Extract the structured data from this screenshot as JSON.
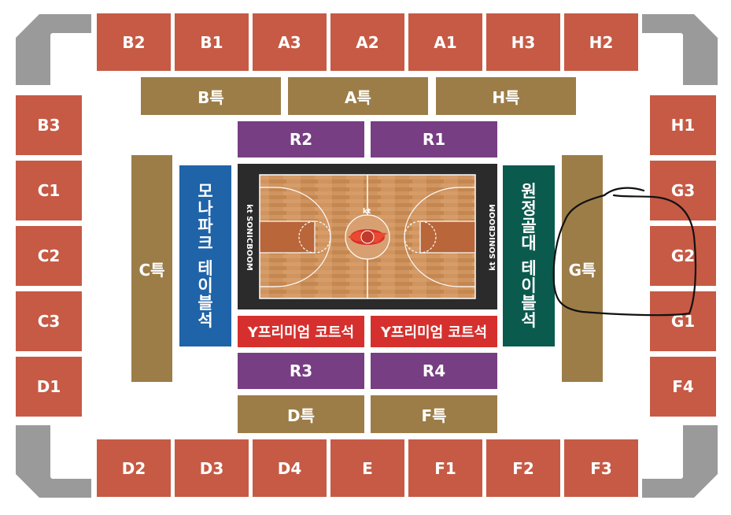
{
  "sections": {
    "top": [
      "B2",
      "B1",
      "A3",
      "A2",
      "A1",
      "H3",
      "H2"
    ],
    "top_special": [
      "B특",
      "A특",
      "H특"
    ],
    "left": [
      "B3",
      "C1",
      "C2",
      "C3",
      "D1"
    ],
    "right": [
      "H1",
      "G3",
      "G2",
      "G1",
      "F4"
    ],
    "bottom": [
      "D2",
      "D3",
      "D4",
      "E",
      "F1",
      "F2",
      "F3"
    ],
    "bottom_special": [
      "D특",
      "F특"
    ],
    "c_special": "C특",
    "g_special": "G특",
    "r_top": [
      "R2",
      "R1"
    ],
    "r_bottom": [
      "R3",
      "R4"
    ],
    "premium": [
      "Y프리미엄 코트석",
      "Y프리미엄 코트석"
    ],
    "left_table": [
      "모",
      "나",
      "파",
      "크",
      "",
      "테",
      "이",
      "블",
      "석"
    ],
    "right_table": [
      "원",
      "정",
      "골",
      "대",
      "",
      "테",
      "이",
      "블",
      "석"
    ]
  },
  "court": {
    "sponsor_left": "kt SONICBOOM",
    "sponsor_right": "kt SONICBOOM",
    "logo_small": "kt"
  },
  "colors": {
    "general": "#c65a45",
    "special": "#9c7d48",
    "r_seats": "#773e83",
    "premium": "#d5302e",
    "home_table": "#1f63a8",
    "away_table": "#0b5a4e",
    "corner": "#9a9a9a",
    "court_wood": "#c98b55"
  }
}
